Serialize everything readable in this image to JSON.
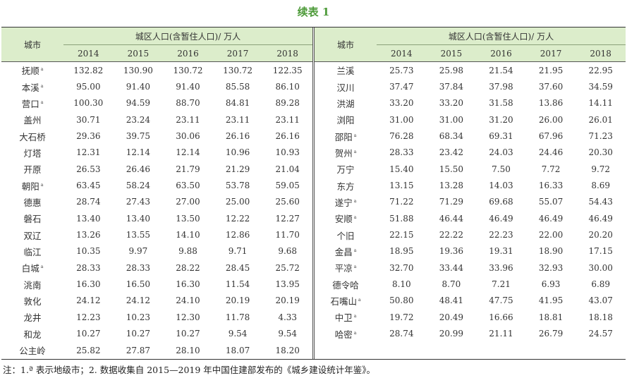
{
  "title": "续表 1",
  "header": {
    "city": "城市",
    "group": "城区人口(含暂住人口)/ 万人",
    "years": [
      "2014",
      "2015",
      "2016",
      "2017",
      "2018"
    ]
  },
  "marker": "a",
  "left": [
    {
      "city": "抚顺",
      "prefecture": true,
      "values": [
        "132.82",
        "130.90",
        "130.72",
        "130.72",
        "122.35"
      ]
    },
    {
      "city": "本溪",
      "prefecture": true,
      "values": [
        "95.00",
        "91.40",
        "91.40",
        "85.58",
        "86.10"
      ]
    },
    {
      "city": "营口",
      "prefecture": true,
      "values": [
        "100.30",
        "94.59",
        "88.70",
        "84.81",
        "89.28"
      ]
    },
    {
      "city": "盖州",
      "prefecture": false,
      "values": [
        "30.71",
        "23.24",
        "23.11",
        "23.11",
        "23.11"
      ]
    },
    {
      "city": "大石桥",
      "prefecture": false,
      "values": [
        "29.36",
        "39.75",
        "30.06",
        "26.16",
        "26.16"
      ]
    },
    {
      "city": "灯塔",
      "prefecture": false,
      "values": [
        "12.31",
        "12.14",
        "12.14",
        "10.96",
        "10.93"
      ]
    },
    {
      "city": "开原",
      "prefecture": false,
      "values": [
        "26.53",
        "26.46",
        "21.79",
        "21.29",
        "21.04"
      ]
    },
    {
      "city": "朝阳",
      "prefecture": true,
      "values": [
        "63.45",
        "58.24",
        "63.50",
        "53.78",
        "59.05"
      ]
    },
    {
      "city": "德惠",
      "prefecture": false,
      "values": [
        "28.74",
        "27.43",
        "27.00",
        "25.00",
        "25.60"
      ]
    },
    {
      "city": "磐石",
      "prefecture": false,
      "values": [
        "13.40",
        "13.40",
        "13.50",
        "12.22",
        "12.27"
      ]
    },
    {
      "city": "双辽",
      "prefecture": false,
      "values": [
        "13.26",
        "13.55",
        "14.10",
        "12.86",
        "11.70"
      ]
    },
    {
      "city": "临江",
      "prefecture": false,
      "values": [
        "10.35",
        "9.97",
        "9.88",
        "9.71",
        "9.68"
      ]
    },
    {
      "city": "白城",
      "prefecture": true,
      "values": [
        "28.33",
        "28.33",
        "28.22",
        "28.45",
        "25.72"
      ]
    },
    {
      "city": "洮南",
      "prefecture": false,
      "values": [
        "16.30",
        "16.50",
        "16.30",
        "11.54",
        "13.95"
      ]
    },
    {
      "city": "敦化",
      "prefecture": false,
      "values": [
        "24.12",
        "24.12",
        "24.10",
        "20.19",
        "20.19"
      ]
    },
    {
      "city": "龙井",
      "prefecture": false,
      "values": [
        "12.23",
        "10.23",
        "12.30",
        "11.78",
        "4.33"
      ]
    },
    {
      "city": "和龙",
      "prefecture": false,
      "values": [
        "10.27",
        "10.27",
        "10.27",
        "9.54",
        "9.54"
      ]
    },
    {
      "city": "公主岭",
      "prefecture": false,
      "values": [
        "25.82",
        "27.87",
        "28.10",
        "18.07",
        "18.20"
      ]
    }
  ],
  "right": [
    {
      "city": "兰溪",
      "prefecture": false,
      "values": [
        "25.73",
        "25.98",
        "21.54",
        "21.95",
        "22.95"
      ]
    },
    {
      "city": "汉川",
      "prefecture": false,
      "values": [
        "37.47",
        "37.84",
        "37.98",
        "37.60",
        "34.59"
      ]
    },
    {
      "city": "洪湖",
      "prefecture": false,
      "values": [
        "33.20",
        "33.20",
        "31.58",
        "13.86",
        "14.11"
      ]
    },
    {
      "city": "浏阳",
      "prefecture": false,
      "values": [
        "31.00",
        "31.00",
        "31.20",
        "26.00",
        "26.01"
      ]
    },
    {
      "city": "邵阳",
      "prefecture": true,
      "values": [
        "76.28",
        "68.34",
        "69.31",
        "67.96",
        "71.23"
      ]
    },
    {
      "city": "贺州",
      "prefecture": true,
      "values": [
        "28.33",
        "23.42",
        "24.03",
        "24.46",
        "20.30"
      ]
    },
    {
      "city": "万宁",
      "prefecture": false,
      "values": [
        "15.40",
        "15.50",
        "7.50",
        "7.72",
        "9.72"
      ]
    },
    {
      "city": "东方",
      "prefecture": false,
      "values": [
        "13.15",
        "13.28",
        "14.03",
        "16.33",
        "8.69"
      ]
    },
    {
      "city": "遂宁",
      "prefecture": true,
      "values": [
        "71.22",
        "71.29",
        "69.68",
        "55.07",
        "54.43"
      ]
    },
    {
      "city": "安顺",
      "prefecture": true,
      "values": [
        "51.88",
        "46.44",
        "46.49",
        "46.49",
        "46.49"
      ]
    },
    {
      "city": "个旧",
      "prefecture": false,
      "values": [
        "22.15",
        "22.22",
        "22.23",
        "22.00",
        "20.20"
      ]
    },
    {
      "city": "金昌",
      "prefecture": true,
      "values": [
        "18.95",
        "19.36",
        "19.31",
        "18.90",
        "17.15"
      ]
    },
    {
      "city": "平凉",
      "prefecture": true,
      "values": [
        "32.70",
        "33.44",
        "33.96",
        "32.93",
        "30.00"
      ]
    },
    {
      "city": "德令哈",
      "prefecture": false,
      "values": [
        "8.10",
        "8.70",
        "7.21",
        "6.93",
        "6.89"
      ]
    },
    {
      "city": "石嘴山",
      "prefecture": true,
      "values": [
        "50.80",
        "48.41",
        "47.75",
        "41.95",
        "43.07"
      ]
    },
    {
      "city": "中卫",
      "prefecture": true,
      "values": [
        "19.72",
        "20.49",
        "16.66",
        "18.81",
        "18.18"
      ]
    },
    {
      "city": "哈密",
      "prefecture": true,
      "values": [
        "28.74",
        "20.99",
        "21.11",
        "26.79",
        "24.57"
      ]
    }
  ],
  "note": "注：1.ª 表示地级市；2. 数据收集自 2015—2019 年中国住建部发布的《城乡建设统计年鉴》。"
}
